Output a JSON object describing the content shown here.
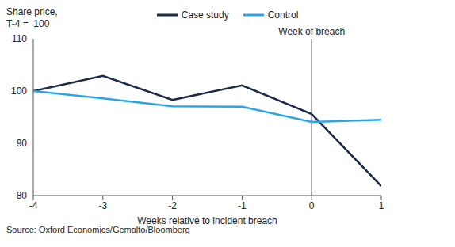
{
  "chart_data": {
    "type": "line",
    "y_label": [
      "Share price,",
      "T-4 =  100"
    ],
    "x_label": "Weeks relative to incident breach",
    "x": [
      -4,
      -3,
      -2,
      -1,
      0,
      1
    ],
    "series": [
      {
        "name": "Case study",
        "color": "#1b2a48",
        "values": [
          100,
          102.9,
          98.3,
          101.1,
          95.6,
          81.8
        ]
      },
      {
        "name": "Control",
        "color": "#2aa5e3",
        "values": [
          100,
          98.6,
          97.1,
          97.0,
          94.1,
          94.5
        ]
      }
    ],
    "xlim": [
      -4,
      1
    ],
    "xticks": [
      -4,
      -3,
      -2,
      -1,
      0,
      1
    ],
    "ylim": [
      80,
      110
    ],
    "yticks": [
      80,
      90,
      100,
      110
    ],
    "grid": false,
    "legend": "top",
    "annotations": [
      {
        "x": 0,
        "text": "Week of breach"
      }
    ],
    "source": "Source: Oxford Economics/Gemalto/Bloomberg"
  }
}
